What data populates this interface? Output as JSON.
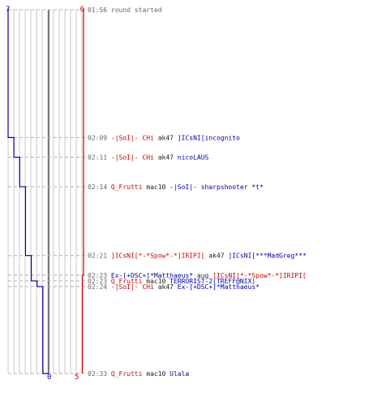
{
  "colors": {
    "blue": "#0000aa",
    "red": "#cc0000",
    "darkred": "#aa0000",
    "time": "#666666",
    "weapon": "#222222",
    "grid": "#c8c8c8",
    "center": "#777777",
    "dash": "#b0b0b0"
  },
  "scale": {
    "blue_top": "7",
    "red_top": "6",
    "blue_bottom": "0",
    "red_bottom": "5"
  },
  "events": [
    {
      "time": "01:56",
      "parts": [
        {
          "text": "round started",
          "color": "time"
        }
      ],
      "blue_count": 7,
      "red_count": 6
    },
    {
      "time": "02:09",
      "parts": [
        {
          "text": "-|SoI|- CHi",
          "color": "red"
        },
        {
          "text": "ak47",
          "color": "weapon"
        },
        {
          "text": "]ICsNI[incognito",
          "color": "blue"
        }
      ],
      "blue_count": 6,
      "red_count": 6
    },
    {
      "time": "02:11",
      "parts": [
        {
          "text": "-|SoI|- CHi",
          "color": "red"
        },
        {
          "text": "ak47",
          "color": "weapon"
        },
        {
          "text": "nicoLAUS",
          "color": "blue"
        }
      ],
      "blue_count": 5,
      "red_count": 6
    },
    {
      "time": "02:14",
      "parts": [
        {
          "text": "Q_Frutti",
          "color": "red"
        },
        {
          "text": "mac10",
          "color": "weapon"
        },
        {
          "text": "-|SoI|- sharpshooter *t*",
          "color": "blue"
        }
      ],
      "blue_count": 4,
      "red_count": 6
    },
    {
      "time": "02:21",
      "parts": [
        {
          "text": "]ICsNI[*-*Spow*-*]IRIPI[",
          "color": "red"
        },
        {
          "text": "ak47",
          "color": "weapon"
        },
        {
          "text": "]ICsNI[***MadGreg***",
          "color": "blue"
        }
      ],
      "blue_count": 3,
      "red_count": 6
    },
    {
      "time": "02:23",
      "parts": [
        {
          "text": "Ex-[+DSC+]*Matthaeus*",
          "color": "blue"
        },
        {
          "text": "aug",
          "color": "weapon"
        },
        {
          "text": "]ICsNI[*-*Spow*-*]IRIPI[",
          "color": "red"
        }
      ],
      "blue_count": 3,
      "red_count": 5
    },
    {
      "time": "02:23",
      "parts": [
        {
          "text": "Q_Frutti",
          "color": "red"
        },
        {
          "text": "mac10",
          "color": "weapon"
        },
        {
          "text": "TERRORIST-2(TREFF@NIX)",
          "color": "blue"
        }
      ],
      "blue_count": 2,
      "red_count": 5
    },
    {
      "time": "02:24",
      "parts": [
        {
          "text": "-|SoI|- CHi",
          "color": "red"
        },
        {
          "text": "ak47",
          "color": "weapon"
        },
        {
          "text": "Ex-[+DSC+]*Matthaeus*",
          "color": "blue"
        }
      ],
      "blue_count": 1,
      "red_count": 5
    },
    {
      "time": "02:33",
      "parts": [
        {
          "text": "Q_Frutti",
          "color": "red"
        },
        {
          "text": "mac10",
          "color": "weapon"
        },
        {
          "text": "Ulala",
          "color": "blue"
        }
      ],
      "blue_count": 0,
      "red_count": 5
    }
  ]
}
